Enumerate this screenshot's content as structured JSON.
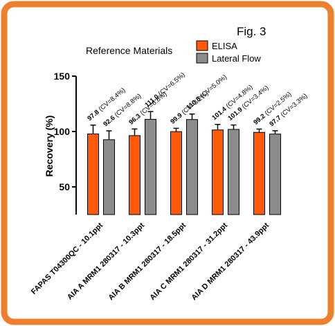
{
  "figure_label": "Fig. 3",
  "colors": {
    "border": "#EE7F2D",
    "elisa": "#FF5A0A",
    "lateral_flow": "#8C8C8C",
    "axis": "#000000"
  },
  "chart_data": {
    "type": "bar",
    "title": "Reference Materials",
    "xlabel": "",
    "ylabel": "Recovery (%)",
    "ylim": [
      25,
      150
    ],
    "yticks": [
      50,
      100,
      150
    ],
    "legend": "top-right",
    "grid": false,
    "categories": [
      "FAPAS T04300QC - 10.1ppt",
      "AIA A MRM1 280317 - 10.3ppt",
      "AIA B MRM1 280317 - 18.5ppt",
      "AIA C MRM1 280317 - 31.2ppt",
      "AIA D MRM1 280317 - 43.9ppt"
    ],
    "series": [
      {
        "name": "ELISA",
        "values": [
          97.8,
          96.3,
          99.9,
          101.4,
          99.2
        ],
        "errors": [
          8,
          6,
          3,
          5,
          3
        ],
        "labels": [
          "97.8 (CV=8.4%)",
          "96.3 (CV=6.8%)",
          "99.9 (CV=3.2%)",
          "101.4 (CV=4.8%)",
          "99.2 (CV=2.5%)"
        ]
      },
      {
        "name": "Lateral Flow",
        "values": [
          92.6,
          111.0,
          110.8,
          101.9,
          97.7
        ],
        "errors": [
          8,
          7,
          5,
          4,
          3
        ],
        "labels": [
          "92.6 (CV=8.8%)",
          "111.0 (CV=6.5%)",
          "110.8 (CV=5.0%)",
          "101.9 (CV=3.4%)",
          "97.7 (CV=3.3%)"
        ]
      }
    ]
  }
}
